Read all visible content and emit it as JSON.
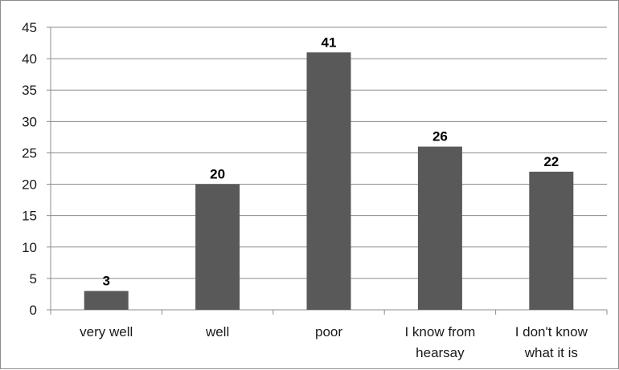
{
  "chart_data": {
    "type": "bar",
    "categories": [
      [
        "very well"
      ],
      [
        "well"
      ],
      [
        "poor"
      ],
      [
        "I know from",
        "hearsay"
      ],
      [
        "I don't know",
        "what it is"
      ]
    ],
    "values": [
      3,
      20,
      41,
      26,
      22
    ],
    "value_labels": [
      "3",
      "20",
      "41",
      "26",
      "22"
    ],
    "ylim": [
      0,
      45
    ],
    "yticks": [
      0,
      5,
      10,
      15,
      20,
      25,
      30,
      35,
      40,
      45
    ],
    "ytick_labels": [
      "0",
      "5",
      "10",
      "15",
      "20",
      "25",
      "30",
      "35",
      "40",
      "45"
    ],
    "grid": true,
    "legend": "none",
    "title": "",
    "xlabel": "",
    "ylabel": "",
    "colors": {
      "bar": "#595959",
      "grid": "#8c8c8c",
      "axis": "#8c8c8c"
    }
  }
}
